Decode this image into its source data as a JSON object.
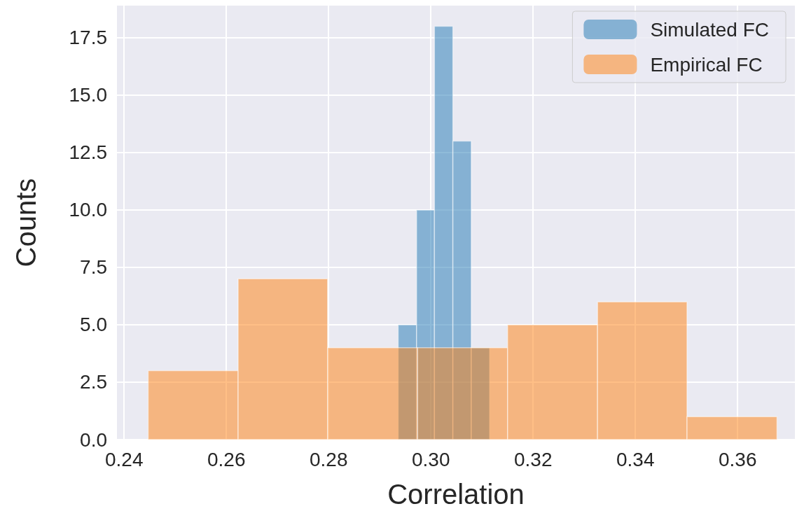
{
  "chart_data": {
    "type": "histogram",
    "xlabel": "Correlation",
    "ylabel": "Counts",
    "bins": [
      0.2447,
      0.2623,
      0.2798,
      0.2974,
      0.315,
      0.3326,
      0.3501,
      0.3677
    ],
    "series": [
      {
        "name": "Simulated FC",
        "color": "#1f77b4",
        "bins": [
          0.2936,
          0.2972,
          0.3007,
          0.3043,
          0.3079,
          0.3115
        ],
        "values": [
          5,
          10,
          18,
          13,
          4
        ]
      },
      {
        "name": "Empirical FC",
        "color": "#ff7f0e",
        "values": [
          3,
          7,
          4,
          4,
          5,
          6,
          1
        ]
      }
    ],
    "xlim": [
      0.2386,
      0.3712
    ],
    "ylim": [
      0,
      18.9
    ],
    "xticks": [
      0.24,
      0.26,
      0.28,
      {
        "value": 0.3,
        "label": "0.30"
      },
      0.32,
      0.34,
      0.36
    ],
    "yticks": [
      {
        "value": 0,
        "label": "0.0"
      },
      2.5,
      {
        "value": 5,
        "label": "5.0"
      },
      7.5,
      {
        "value": 10,
        "label": "10.0"
      },
      12.5,
      {
        "value": 15,
        "label": "15.0"
      },
      17.5
    ],
    "grid": true,
    "legend": "top right"
  }
}
